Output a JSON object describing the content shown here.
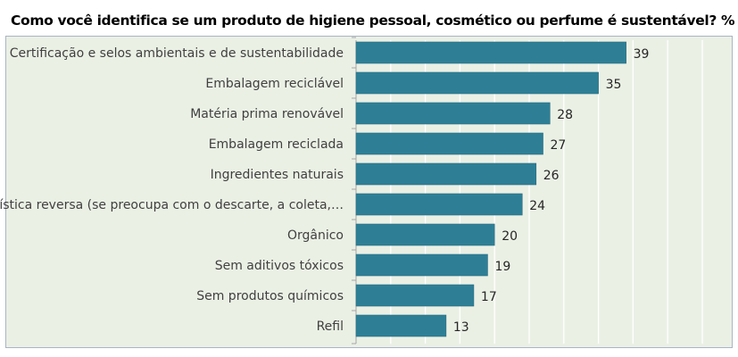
{
  "chart_data": {
    "type": "bar",
    "orientation": "horizontal",
    "title": "Como você identifica se um produto de higiene pessoal, cosmético ou perfume é sustentável? %",
    "categories": [
      "Certificação e selos ambientais e de sustentabilidade",
      "Embalagem reciclável",
      "Matéria prima renovável",
      "Embalagem reciclada",
      "Ingredientes naturais",
      "Logística reversa (se preocupa com o descarte, a coleta,…",
      "Orgânico",
      "Sem aditivos tóxicos",
      "Sem produtos químicos",
      "Refil"
    ],
    "values": [
      39,
      35,
      28,
      27,
      26,
      24,
      20,
      19,
      17,
      13
    ],
    "value_labels": [
      "39",
      "35",
      "28",
      "27",
      "26",
      "24",
      "20",
      "19",
      "17",
      "13"
    ],
    "xlim": [
      0,
      50
    ],
    "grid": true,
    "legend": "none",
    "colors": {
      "bar": "#2e7f96",
      "bar_edge": "#276d81",
      "panel_bg": "#ebf0e5",
      "grid": "#ffffff",
      "axis": "#a6a6a6"
    }
  }
}
